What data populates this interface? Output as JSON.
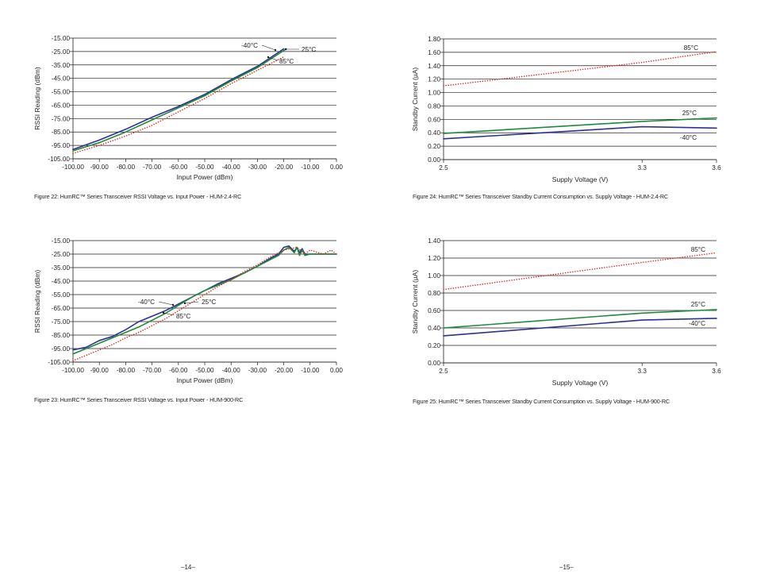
{
  "chart_data": [
    {
      "type": "line",
      "id": "fig22",
      "title": "",
      "xlabel": "Input Power (dBm)",
      "ylabel": "RSSI Reading (dBm)",
      "xlim": [
        -100,
        0
      ],
      "ylim": [
        -105,
        -15
      ],
      "xticks": [
        "-100.00",
        "-90.00",
        "-80.00",
        "-70.00",
        "-60.00",
        "-50.00",
        "-40.00",
        "-30.00",
        "-20.00",
        "-10.00",
        "0.00"
      ],
      "yticks": [
        "-15.00",
        "-25.00",
        "-35.00",
        "-45.00",
        "-55.00",
        "-65.00",
        "-75.00",
        "-85.00",
        "-95.00",
        "-105.00"
      ],
      "grid": "horizontal",
      "series": [
        {
          "name": "-40°C",
          "color": "#2e3192",
          "style": "solid",
          "x": [
            -100,
            -90,
            -80,
            -70,
            -60,
            -50,
            -40,
            -30,
            -20
          ],
          "y": [
            -98,
            -91,
            -83,
            -74,
            -66,
            -57,
            -46,
            -36,
            -23
          ]
        },
        {
          "name": "25°C",
          "color": "#1f8a3a",
          "style": "solid",
          "x": [
            -100,
            -90,
            -80,
            -70,
            -60,
            -50,
            -40,
            -30,
            -19
          ],
          "y": [
            -99,
            -93,
            -85,
            -76,
            -67,
            -58,
            -47,
            -37,
            -23
          ]
        },
        {
          "name": "85°C",
          "color": "#e0261b",
          "style": "dotted",
          "x": [
            -100,
            -90,
            -80,
            -70,
            -60,
            -50,
            -40,
            -30,
            -20
          ],
          "y": [
            -101,
            -95,
            -88,
            -80,
            -70,
            -60,
            -49,
            -39,
            -29
          ]
        }
      ],
      "annotations": [
        "-40°C",
        "25°C",
        "85°C"
      ]
    },
    {
      "type": "line",
      "id": "fig23",
      "title": "",
      "xlabel": "Input Power (dBm)",
      "ylabel": "RSSI Reading (dBm)",
      "xlim": [
        -100,
        0
      ],
      "ylim": [
        -105,
        -15
      ],
      "xticks": [
        "-100.00",
        "-90.00",
        "-80.00",
        "-70.00",
        "-60.00",
        "-50.00",
        "-40.00",
        "-30.00",
        "-20.00",
        "-10.00",
        "0.00"
      ],
      "yticks": [
        "-15.00",
        "-25.00",
        "-35.00",
        "-45.00",
        "-55.00",
        "-65.00",
        "-75.00",
        "-85.00",
        "-95.00",
        "-105.00"
      ],
      "grid": "horizontal",
      "series": [
        {
          "name": "-40°C",
          "color": "#2e3192",
          "style": "solid",
          "x": [
            -100,
            -95,
            -90,
            -85,
            -80,
            -75,
            -70,
            -65,
            -60,
            -55,
            -50,
            -45,
            -40,
            -35,
            -30,
            -25,
            -22,
            -20,
            -18,
            -16,
            -15,
            -14,
            -13,
            -12,
            -10,
            0
          ],
          "y": [
            -96,
            -94,
            -89,
            -86,
            -81,
            -75,
            -71,
            -67,
            -62,
            -57,
            -52,
            -47,
            -43,
            -39,
            -34,
            -28,
            -25,
            -20,
            -19,
            -23,
            -20,
            -24,
            -21,
            -25,
            -25,
            -25
          ]
        },
        {
          "name": "25°C",
          "color": "#1f8a3a",
          "style": "solid",
          "x": [
            -100,
            -95,
            -90,
            -85,
            -80,
            -75,
            -70,
            -65,
            -60,
            -55,
            -50,
            -45,
            -40,
            -35,
            -30,
            -25,
            -22,
            -20,
            -18,
            -16,
            -15,
            -14,
            -13,
            -12,
            -10,
            0
          ],
          "y": [
            -99,
            -95,
            -91,
            -87,
            -83,
            -79,
            -74,
            -69,
            -63,
            -57,
            -52,
            -48,
            -44,
            -39,
            -34,
            -29,
            -26,
            -22,
            -20,
            -24,
            -20,
            -26,
            -22,
            -26,
            -25,
            -25
          ]
        },
        {
          "name": "85°C",
          "color": "#e0261b",
          "style": "dotted",
          "x": [
            -100,
            -95,
            -90,
            -85,
            -80,
            -75,
            -70,
            -65,
            -60,
            -55,
            -50,
            -45,
            -40,
            -35,
            -30,
            -25,
            -20,
            -15,
            -12,
            -10,
            -5,
            -2,
            0
          ],
          "y": [
            -104,
            -100,
            -96,
            -92,
            -87,
            -83,
            -78,
            -73,
            -67,
            -61,
            -55,
            -49,
            -44,
            -38,
            -33,
            -27,
            -22,
            -20,
            -25,
            -22,
            -25,
            -22,
            -25
          ]
        }
      ],
      "annotations": [
        "-40°C",
        "25°C",
        "85°C"
      ]
    },
    {
      "type": "line",
      "id": "fig24",
      "title": "",
      "xlabel": "Supply Voltage (V)",
      "ylabel": "Standby Current (µA)",
      "xlim": [
        2.5,
        3.6
      ],
      "ylim": [
        0,
        1.8
      ],
      "xticks": [
        "2.5",
        "3.3",
        "3.6"
      ],
      "xtick_values": [
        2.5,
        3.3,
        3.6
      ],
      "yticks": [
        "1.80",
        "1.60",
        "1.40",
        "1.20",
        "1.00",
        "0.80",
        "0.60",
        "0.40",
        "0.20",
        "0.00"
      ],
      "grid": "horizontal",
      "series": [
        {
          "name": "85°C",
          "color": "#e0261b",
          "style": "dotted",
          "x": [
            2.5,
            3.3,
            3.6
          ],
          "y": [
            1.1,
            1.45,
            1.61
          ]
        },
        {
          "name": "25°C",
          "color": "#1f8a3a",
          "style": "solid",
          "x": [
            2.5,
            3.3,
            3.6
          ],
          "y": [
            0.39,
            0.57,
            0.62
          ]
        },
        {
          "name": "-40°C",
          "color": "#2e3192",
          "style": "solid",
          "x": [
            2.5,
            3.3,
            3.6
          ],
          "y": [
            0.31,
            0.49,
            0.47
          ]
        }
      ],
      "annotations": [
        "85°C",
        "25°C",
        "-40°C"
      ]
    },
    {
      "type": "line",
      "id": "fig25",
      "title": "",
      "xlabel": "Supply Voltage (V)",
      "ylabel": "Standby Current (µA)",
      "xlim": [
        2.5,
        3.6
      ],
      "ylim": [
        0,
        1.4
      ],
      "xticks": [
        "2.5",
        "3.3",
        "3.6"
      ],
      "xtick_values": [
        2.5,
        3.3,
        3.6
      ],
      "yticks": [
        "1.40",
        "1.20",
        "1.00",
        "0.80",
        "0.60",
        "0.40",
        "0.20",
        "0.00"
      ],
      "grid": "horizontal",
      "series": [
        {
          "name": "85°C",
          "color": "#e0261b",
          "style": "dotted",
          "x": [
            2.5,
            3.3,
            3.6
          ],
          "y": [
            0.84,
            1.15,
            1.26
          ]
        },
        {
          "name": "25°C",
          "color": "#1f8a3a",
          "style": "solid",
          "x": [
            2.5,
            3.3,
            3.6
          ],
          "y": [
            0.4,
            0.57,
            0.61
          ]
        },
        {
          "name": "-40°C",
          "color": "#2e3192",
          "style": "solid",
          "x": [
            2.5,
            3.3,
            3.6
          ],
          "y": [
            0.31,
            0.49,
            0.51
          ]
        }
      ],
      "annotations": [
        "85°C",
        "25°C",
        "-40°C"
      ]
    }
  ],
  "captions": {
    "fig22": "Figure 22: HumRC™ Series Transceiver RSSI Voltage vs. Input Power - HUM-2.4-RC",
    "fig23": "Figure 23: HumRC™ Series Transceiver RSSI Voltage vs. Input Power - HUM-900-RC",
    "fig24": "Figure 24: HumRC™ Series Transceiver Standby Current Consumption vs. Supply Voltage - HUM-2.4-RC",
    "fig25": "Figure 25: HumRC™ Series Transceiver Standby Current Consumption vs. Supply Voltage - HUM-900-RC"
  },
  "page_numbers": {
    "left": "–14–",
    "right": "–15–"
  }
}
